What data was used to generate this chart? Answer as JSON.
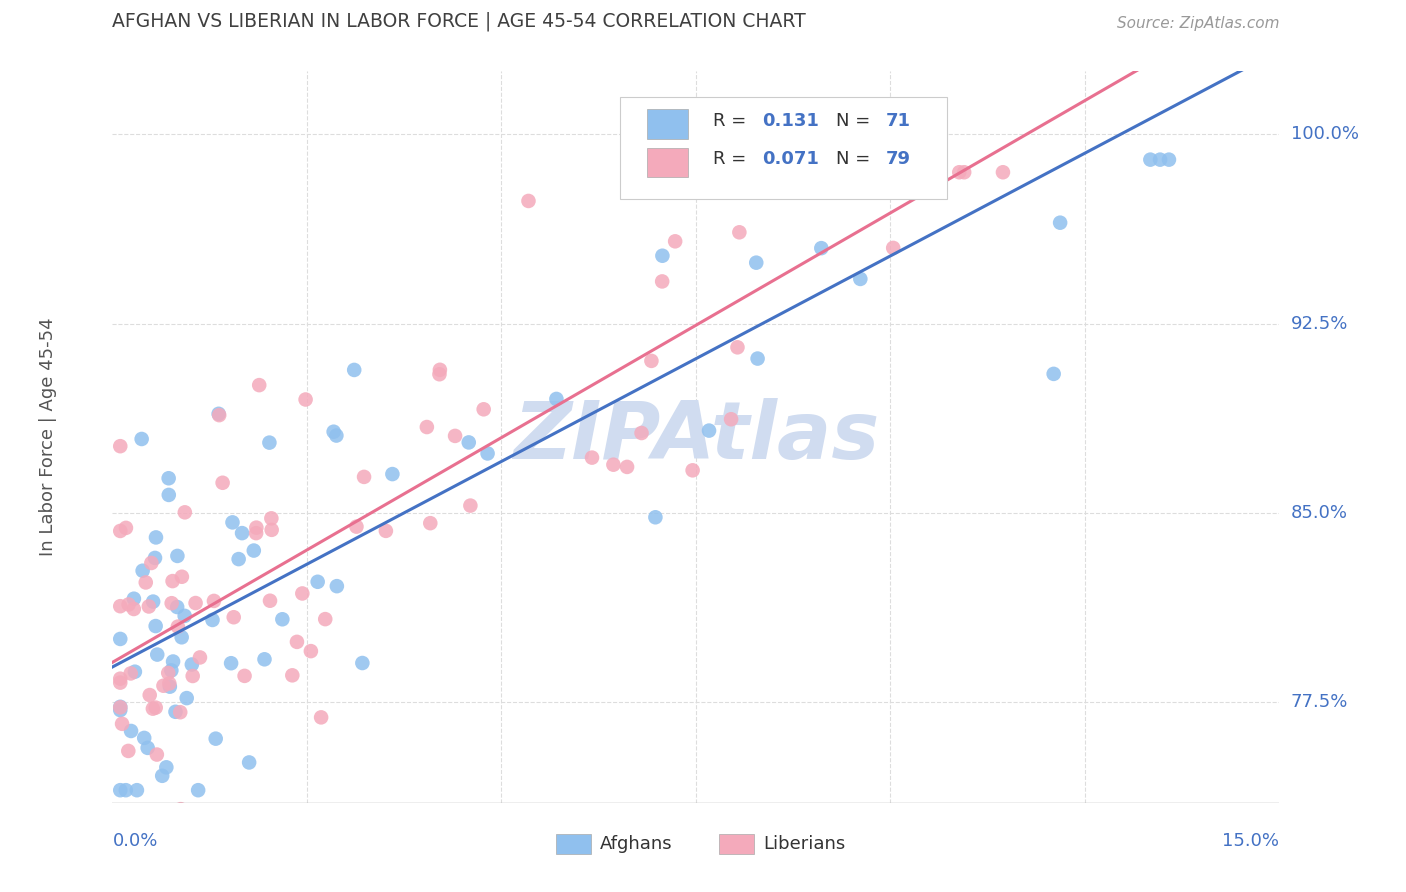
{
  "title": "AFGHAN VS LIBERIAN IN LABOR FORCE | AGE 45-54 CORRELATION CHART",
  "source": "Source: ZipAtlas.com",
  "ylabel": "In Labor Force | Age 45-54",
  "xmin": 0.0,
  "xmax": 0.15,
  "ymin": 0.735,
  "ymax": 1.025,
  "afghan_R": 0.131,
  "afghan_N": 71,
  "liberian_R": 0.071,
  "liberian_N": 79,
  "afghan_color": "#90C0EE",
  "liberian_color": "#F4AABB",
  "afghan_line_color": "#4472C4",
  "liberian_line_color": "#E87090",
  "title_color": "#404040",
  "source_color": "#999999",
  "axis_label_color": "#4472C4",
  "watermark_color": "#D0DCF0",
  "watermark_text": "ZIPAtlas",
  "background_color": "#FFFFFF",
  "grid_color": "#DDDDDD",
  "ytick_positions": [
    0.775,
    0.85,
    0.925,
    1.0
  ],
  "ytick_labels": [
    "77.5%",
    "85.0%",
    "92.5%",
    "100.0%"
  ],
  "xtick_label_left": "0.0%",
  "xtick_label_right": "15.0%"
}
